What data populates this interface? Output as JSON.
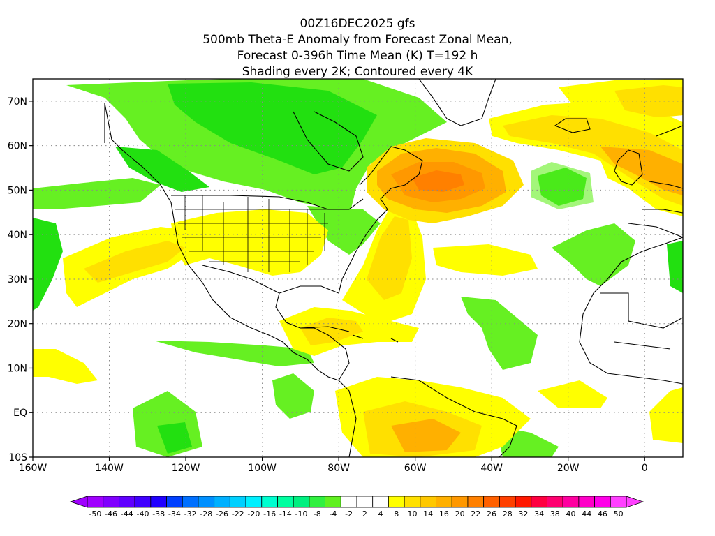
{
  "titles": {
    "line1": "00Z16DEC2025 gfs",
    "line2": "500mb Theta-E Anomaly from Forecast Zonal Mean,",
    "line3": "Forecast 0-396h Time Mean (K) T=192 h",
    "line4": "Shading every 2K; Contoured every 4K"
  },
  "axes": {
    "lat_labels": [
      "70N",
      "60N",
      "50N",
      "40N",
      "30N",
      "20N",
      "10N",
      "EQ",
      "10S"
    ],
    "lat_values": [
      70,
      60,
      50,
      40,
      30,
      20,
      10,
      0,
      -10
    ],
    "lon_labels": [
      "160W",
      "140W",
      "120W",
      "100W",
      "80W",
      "60W",
      "40W",
      "20W",
      "0"
    ],
    "lon_values": [
      -160,
      -140,
      -120,
      -100,
      -80,
      -60,
      -40,
      -20,
      0
    ],
    "lon_range": [
      -160,
      10
    ],
    "lat_range": [
      -10,
      75
    ]
  },
  "colorbar": {
    "labels": [
      "-50",
      "-46",
      "-44",
      "-40",
      "-38",
      "-34",
      "-32",
      "-28",
      "-26",
      "-22",
      "-20",
      "-16",
      "-14",
      "-10",
      "-8",
      "-4",
      "-2",
      "2",
      "4",
      "8",
      "10",
      "14",
      "16",
      "20",
      "22",
      "26",
      "28",
      "32",
      "34",
      "38",
      "40",
      "44",
      "46",
      "50"
    ],
    "colors": [
      "#a000ff",
      "#8000ff",
      "#6000ff",
      "#4000ff",
      "#2000ff",
      "#0040ff",
      "#0070ff",
      "#0090ff",
      "#00b0ff",
      "#00d0ff",
      "#00f0ff",
      "#00ffd0",
      "#00ffa0",
      "#00f080",
      "#30f040",
      "#60f020",
      "#ffffff",
      "#ffffff",
      "#ffffff",
      "#ffff00",
      "#ffe000",
      "#ffc800",
      "#ffb000",
      "#ff9800",
      "#ff8000",
      "#ff6000",
      "#ff4000",
      "#ff1800",
      "#ff0040",
      "#ff0070",
      "#ff00a0",
      "#ff00c8",
      "#ff00e8",
      "#ff40ff"
    ],
    "left_arrow_color": "#a000ff",
    "right_arrow_color": "#ff40ff"
  },
  "shading_colors": {
    "green_dark": "#22e010",
    "green_light": "#66f022",
    "yellow": "#ffff00",
    "gold": "#ffe000",
    "orange": "#ffb000",
    "orange_dark": "#ff9800",
    "orange_red": "#ff8000"
  }
}
